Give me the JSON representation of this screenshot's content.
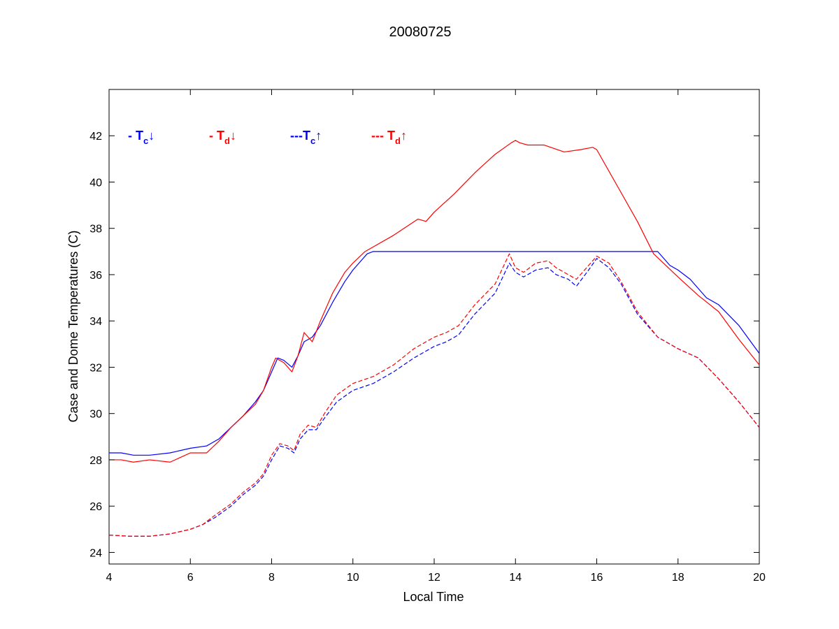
{
  "chart_data": {
    "type": "line",
    "title": "20080725",
    "xlabel": "Local Time",
    "ylabel": "Case and Dome Temperatures (C)",
    "xlim": [
      4,
      20
    ],
    "ylim": [
      23.5,
      44
    ],
    "xticks": [
      4,
      6,
      8,
      10,
      12,
      14,
      16,
      18,
      20
    ],
    "yticks": [
      24,
      26,
      28,
      30,
      32,
      34,
      36,
      38,
      40,
      42
    ],
    "grid": false,
    "legend_position": "top-left",
    "series": [
      {
        "name": "Tc↓",
        "legend_prefix": "- ",
        "legend_main": "T",
        "legend_sub": "c",
        "legend_arrow": "↓",
        "color": "#0000ff",
        "style": "solid",
        "x": [
          4.0,
          4.3,
          4.6,
          5.0,
          5.5,
          6.0,
          6.4,
          6.7,
          7.0,
          7.3,
          7.6,
          7.8,
          8.0,
          8.15,
          8.3,
          8.5,
          8.65,
          8.8,
          9.0,
          9.2,
          9.5,
          9.8,
          10.0,
          10.2,
          10.35,
          10.5,
          12.0,
          14.0,
          16.0,
          17.0,
          17.5,
          17.8,
          18.0,
          18.3,
          18.7,
          19.0,
          19.5,
          20.0
        ],
        "y": [
          28.3,
          28.3,
          28.2,
          28.2,
          28.3,
          28.5,
          28.6,
          28.9,
          29.4,
          29.9,
          30.5,
          31.0,
          31.8,
          32.4,
          32.3,
          32.0,
          32.5,
          33.1,
          33.3,
          33.8,
          34.8,
          35.7,
          36.2,
          36.6,
          36.9,
          37.0,
          37.0,
          37.0,
          37.0,
          37.0,
          37.0,
          36.4,
          36.2,
          35.8,
          35.0,
          34.7,
          33.8,
          32.6
        ]
      },
      {
        "name": "Td↓",
        "legend_prefix": "- ",
        "legend_main": "T",
        "legend_sub": "d",
        "legend_arrow": "↓",
        "color": "#ff0000",
        "style": "solid",
        "x": [
          4.0,
          4.3,
          4.6,
          5.0,
          5.5,
          6.0,
          6.4,
          6.7,
          7.0,
          7.3,
          7.6,
          7.8,
          8.0,
          8.1,
          8.3,
          8.5,
          8.65,
          8.8,
          9.0,
          9.2,
          9.5,
          9.8,
          10.0,
          10.3,
          11.0,
          11.6,
          11.8,
          12.0,
          12.5,
          13.0,
          13.5,
          13.9,
          14.0,
          14.1,
          14.3,
          14.7,
          15.2,
          15.6,
          15.9,
          16.0,
          17.0,
          17.4,
          17.7,
          18.0,
          18.5,
          19.0,
          19.5,
          20.0
        ],
        "y": [
          28.0,
          28.0,
          27.9,
          28.0,
          27.9,
          28.3,
          28.3,
          28.8,
          29.4,
          29.9,
          30.4,
          31.0,
          32.0,
          32.4,
          32.2,
          31.8,
          32.5,
          33.5,
          33.1,
          34.0,
          35.2,
          36.1,
          36.5,
          37.0,
          37.7,
          38.4,
          38.3,
          38.7,
          39.5,
          40.4,
          41.2,
          41.7,
          41.8,
          41.7,
          41.6,
          41.6,
          41.3,
          41.4,
          41.5,
          41.4,
          38.3,
          36.9,
          36.4,
          35.9,
          35.1,
          34.4,
          33.2,
          32.1
        ]
      },
      {
        "name": "Tc↑",
        "legend_prefix": "---",
        "legend_main": "T",
        "legend_sub": "c",
        "legend_arrow": "↑",
        "color": "#0000ff",
        "style": "dashed",
        "x": [
          4.0,
          4.5,
          5.0,
          5.5,
          6.0,
          6.3,
          6.6,
          7.0,
          7.3,
          7.6,
          7.8,
          8.0,
          8.2,
          8.4,
          8.55,
          8.7,
          8.9,
          9.1,
          9.3,
          9.6,
          10.0,
          10.5,
          11.0,
          11.5,
          12.0,
          12.3,
          12.6,
          13.0,
          13.5,
          13.85,
          14.0,
          14.2,
          14.5,
          14.8,
          15.0,
          15.3,
          15.5,
          15.8,
          16.0,
          16.3,
          16.6,
          17.0,
          17.5,
          18.0,
          18.5,
          19.0,
          19.5,
          20.0
        ],
        "y": [
          24.75,
          24.7,
          24.7,
          24.8,
          25.0,
          25.2,
          25.5,
          26.0,
          26.5,
          26.9,
          27.3,
          28.0,
          28.6,
          28.5,
          28.3,
          28.9,
          29.3,
          29.3,
          29.8,
          30.5,
          31.0,
          31.3,
          31.8,
          32.4,
          32.9,
          33.1,
          33.4,
          34.3,
          35.2,
          36.5,
          36.1,
          35.9,
          36.2,
          36.3,
          36.0,
          35.8,
          35.5,
          36.2,
          36.7,
          36.3,
          35.6,
          34.3,
          33.3,
          32.8,
          32.4,
          31.5,
          30.5,
          29.4
        ]
      },
      {
        "name": "Td↑",
        "legend_prefix": "--- ",
        "legend_main": "T",
        "legend_sub": "d",
        "legend_arrow": "↑",
        "color": "#ff0000",
        "style": "dashed",
        "x": [
          4.0,
          4.5,
          5.0,
          5.5,
          6.0,
          6.3,
          6.6,
          7.0,
          7.3,
          7.6,
          7.8,
          8.0,
          8.2,
          8.4,
          8.55,
          8.7,
          8.9,
          9.1,
          9.3,
          9.6,
          10.0,
          10.5,
          11.0,
          11.5,
          12.0,
          12.3,
          12.6,
          13.0,
          13.5,
          13.85,
          14.0,
          14.2,
          14.5,
          14.8,
          15.0,
          15.3,
          15.5,
          15.8,
          16.0,
          16.3,
          16.6,
          17.0,
          17.5,
          18.0,
          18.5,
          19.0,
          19.5,
          20.0
        ],
        "y": [
          24.75,
          24.7,
          24.7,
          24.8,
          25.0,
          25.2,
          25.6,
          26.1,
          26.6,
          27.0,
          27.4,
          28.2,
          28.7,
          28.6,
          28.4,
          29.1,
          29.5,
          29.4,
          30.0,
          30.8,
          31.3,
          31.6,
          32.1,
          32.8,
          33.3,
          33.5,
          33.8,
          34.7,
          35.6,
          36.9,
          36.3,
          36.1,
          36.5,
          36.6,
          36.3,
          36.0,
          35.8,
          36.4,
          36.8,
          36.5,
          35.7,
          34.4,
          33.3,
          32.8,
          32.4,
          31.5,
          30.5,
          29.4
        ]
      }
    ]
  }
}
